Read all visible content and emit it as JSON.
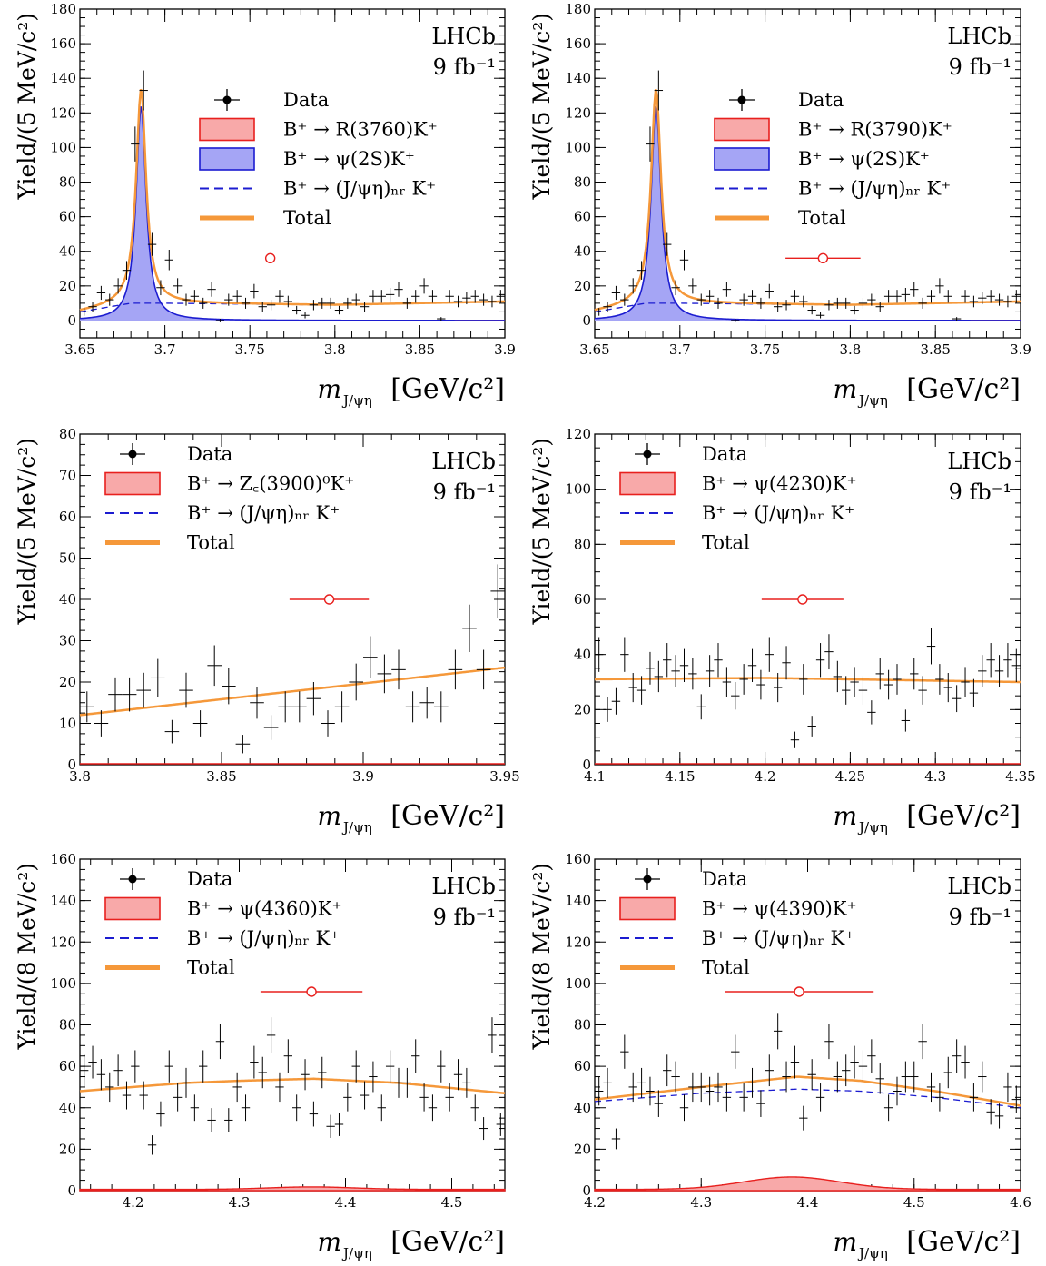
{
  "colors": {
    "data": "#000000",
    "total": "#f5983a",
    "signal_fill": "#f8a9a9",
    "signal_line": "#e8201e",
    "psi2s_fill": "#a5a5f5",
    "psi2s_line": "#1c1cd0",
    "nr_line": "#1c1cd0",
    "marker": "#e8201e"
  },
  "x_axis_label": "m",
  "x_axis_sub": "J/ψη",
  "x_axis_unit": "[GeV/c²]",
  "chart_data": [
    {
      "type": "line",
      "panel": "R(3760)",
      "ylabel": "Yield/(5 MeV/c²)",
      "xlim": [
        3.65,
        3.9
      ],
      "ylim": [
        -10,
        180
      ],
      "xticks": [
        "3.65",
        "3.7",
        "3.75",
        "3.8",
        "3.85",
        "3.9"
      ],
      "yticks": [
        "0",
        "20",
        "40",
        "60",
        "80",
        "100",
        "120",
        "140",
        "160",
        "180"
      ],
      "lhcb": "LHCb",
      "lumi": "9 fb⁻¹",
      "legend": [
        "Data",
        "B⁺ → R(3760)K⁺",
        "B⁺ → ψ(2S)K⁺",
        "B⁺ → (J/ψη)ₙᵣ K⁺",
        "Total"
      ],
      "resonance": {
        "mass": 3.762,
        "y": 36,
        "width": 0.0
      },
      "psi2s": {
        "mass": 3.686,
        "amp": 124,
        "sigma": 0.0035
      },
      "nr": {
        "x": [
          3.65,
          3.68,
          3.7,
          3.75,
          3.8,
          3.85,
          3.9
        ],
        "y": [
          5,
          10,
          10,
          9.5,
          9,
          10,
          11
        ]
      },
      "data_x": [
        3.6525,
        3.6575,
        3.6625,
        3.6675,
        3.6725,
        3.6775,
        3.6825,
        3.6875,
        3.6925,
        3.6975,
        3.7025,
        3.7075,
        3.7125,
        3.7175,
        3.7225,
        3.7275,
        3.7325,
        3.7375,
        3.7425,
        3.7475,
        3.7525,
        3.7575,
        3.7625,
        3.7675,
        3.7725,
        3.7775,
        3.7825,
        3.7875,
        3.7925,
        3.7975,
        3.8025,
        3.8075,
        3.8125,
        3.8175,
        3.8225,
        3.8275,
        3.8325,
        3.8375,
        3.8425,
        3.8475,
        3.8525,
        3.8575,
        3.8625,
        3.8675,
        3.8725,
        3.8775,
        3.8825,
        3.8875,
        3.8925,
        3.8975
      ],
      "data_y": [
        5,
        8,
        16,
        12,
        20,
        29,
        102,
        133,
        44,
        19,
        35,
        20,
        12,
        14,
        10,
        18,
        0,
        12,
        14,
        10,
        17,
        8,
        9,
        14,
        11,
        6,
        3,
        9,
        10,
        10,
        6,
        10,
        12,
        8,
        14,
        14,
        15,
        18,
        10,
        14,
        20,
        14,
        1,
        14,
        11,
        13,
        14,
        12,
        11,
        14
      ]
    },
    {
      "type": "line",
      "panel": "R(3790)",
      "ylabel": "Yield/(5 MeV/c²)",
      "xlim": [
        3.65,
        3.9
      ],
      "ylim": [
        -10,
        180
      ],
      "xticks": [
        "3.65",
        "3.7",
        "3.75",
        "3.8",
        "3.85",
        "3.9"
      ],
      "yticks": [
        "0",
        "20",
        "40",
        "60",
        "80",
        "100",
        "120",
        "140",
        "160",
        "180"
      ],
      "lhcb": "LHCb",
      "lumi": "9 fb⁻¹",
      "legend": [
        "Data",
        "B⁺ → R(3790)K⁺",
        "B⁺ → ψ(2S)K⁺",
        "B⁺ → (J/ψη)ₙᵣ K⁺",
        "Total"
      ],
      "resonance": {
        "mass": 3.784,
        "y": 36,
        "width": 0.022
      },
      "psi2s": {
        "mass": 3.686,
        "amp": 124,
        "sigma": 0.0035
      },
      "nr": {
        "x": [
          3.65,
          3.68,
          3.7,
          3.75,
          3.8,
          3.85,
          3.9
        ],
        "y": [
          5,
          10,
          10,
          9.5,
          9,
          10,
          11
        ]
      },
      "data_x": [
        3.6525,
        3.6575,
        3.6625,
        3.6675,
        3.6725,
        3.6775,
        3.6825,
        3.6875,
        3.6925,
        3.6975,
        3.7025,
        3.7075,
        3.7125,
        3.7175,
        3.7225,
        3.7275,
        3.7325,
        3.7375,
        3.7425,
        3.7475,
        3.7525,
        3.7575,
        3.7625,
        3.7675,
        3.7725,
        3.7775,
        3.7825,
        3.7875,
        3.7925,
        3.7975,
        3.8025,
        3.8075,
        3.8125,
        3.8175,
        3.8225,
        3.8275,
        3.8325,
        3.8375,
        3.8425,
        3.8475,
        3.8525,
        3.8575,
        3.8625,
        3.8675,
        3.8725,
        3.8775,
        3.8825,
        3.8875,
        3.8925,
        3.8975
      ],
      "data_y": [
        5,
        8,
        16,
        12,
        20,
        29,
        102,
        133,
        44,
        19,
        35,
        20,
        12,
        14,
        10,
        18,
        0,
        12,
        14,
        10,
        17,
        8,
        9,
        14,
        11,
        6,
        3,
        9,
        10,
        10,
        6,
        10,
        12,
        8,
        14,
        14,
        15,
        18,
        10,
        14,
        20,
        14,
        1,
        14,
        11,
        13,
        14,
        12,
        11,
        14
      ]
    },
    {
      "type": "line",
      "panel": "Zc(3900)",
      "ylabel": "Yield/(5 MeV/c²)",
      "xlim": [
        3.8,
        3.95
      ],
      "ylim": [
        0,
        80
      ],
      "xticks": [
        "3.8",
        "3.85",
        "3.9",
        "3.95"
      ],
      "yticks": [
        "0",
        "10",
        "20",
        "30",
        "40",
        "50",
        "60",
        "70",
        "80"
      ],
      "lhcb": "LHCb",
      "lumi": "9 fb⁻¹",
      "legend": [
        "Data",
        "B⁺ → Z꜀(3900)⁰K⁺",
        "B⁺ → (J/ψη)ₙᵣ K⁺",
        "Total"
      ],
      "resonance": {
        "mass": 3.888,
        "y": 40,
        "width": 0.014
      },
      "total": {
        "x": [
          3.8,
          3.95
        ],
        "y": [
          12,
          23.5
        ]
      },
      "data_x": [
        3.8025,
        3.8075,
        3.8125,
        3.8175,
        3.8225,
        3.8275,
        3.8325,
        3.8375,
        3.8425,
        3.8475,
        3.8525,
        3.8575,
        3.8625,
        3.8675,
        3.8725,
        3.8775,
        3.8825,
        3.8875,
        3.8925,
        3.8975,
        3.9025,
        3.9075,
        3.9125,
        3.9175,
        3.9225,
        3.9275,
        3.9325,
        3.9375,
        3.9425,
        3.9475
      ],
      "data_y": [
        14,
        10,
        17,
        17,
        18,
        21,
        8,
        18,
        10,
        24,
        19,
        5,
        15,
        9,
        14,
        14,
        16,
        10,
        14,
        20,
        26,
        22,
        23,
        14,
        15,
        14,
        23,
        33,
        23,
        42
      ]
    },
    {
      "type": "line",
      "panel": "ψ(4230)",
      "ylabel": "Yield/(5 MeV/c²)",
      "xlim": [
        4.1,
        4.35
      ],
      "ylim": [
        0,
        120
      ],
      "xticks": [
        "4.1",
        "4.15",
        "4.2",
        "4.25",
        "4.3",
        "4.35"
      ],
      "yticks": [
        "0",
        "20",
        "40",
        "60",
        "80",
        "100",
        "120"
      ],
      "lhcb": "LHCb",
      "lumi": "9 fb⁻¹",
      "legend": [
        "Data",
        "B⁺ → ψ(4230)K⁺",
        "B⁺ → (J/ψη)ₙᵣ K⁺",
        "Total"
      ],
      "resonance": {
        "mass": 4.222,
        "y": 60,
        "width": 0.024
      },
      "total": {
        "x": [
          4.1,
          4.2,
          4.35
        ],
        "y": [
          31,
          31.5,
          30
        ]
      },
      "data_x": [
        4.1025,
        4.1075,
        4.1125,
        4.1175,
        4.1225,
        4.1275,
        4.1325,
        4.1375,
        4.1425,
        4.1475,
        4.1525,
        4.1575,
        4.1625,
        4.1675,
        4.1725,
        4.1775,
        4.1825,
        4.1875,
        4.1925,
        4.1975,
        4.2025,
        4.2075,
        4.2125,
        4.2175,
        4.2225,
        4.2275,
        4.2325,
        4.2375,
        4.2425,
        4.2475,
        4.2525,
        4.2575,
        4.2625,
        4.2675,
        4.2725,
        4.2775,
        4.2825,
        4.2875,
        4.2925,
        4.2975,
        4.3025,
        4.3075,
        4.3125,
        4.3175,
        4.3225,
        4.3275,
        4.3325,
        4.3375,
        4.3425,
        4.3475
      ],
      "data_y": [
        40,
        20,
        23,
        40,
        28,
        27,
        35,
        32,
        38,
        34,
        36,
        33,
        21,
        34,
        38,
        30,
        25,
        31,
        36,
        29,
        40,
        28,
        37,
        9,
        31,
        14,
        38,
        41,
        32,
        27,
        30,
        27,
        19,
        33,
        29,
        31,
        16,
        33,
        27,
        43,
        31,
        28,
        24,
        30,
        26,
        34,
        38,
        34,
        38,
        36
      ]
    },
    {
      "type": "line",
      "panel": "ψ(4360)",
      "ylabel": "Yield/(8 MeV/c²)",
      "xlim": [
        4.15,
        4.55
      ],
      "ylim": [
        0,
        160
      ],
      "xticks": [
        "4.2",
        "4.3",
        "4.4",
        "4.5"
      ],
      "yticks": [
        "0",
        "20",
        "40",
        "60",
        "80",
        "100",
        "120",
        "140",
        "160"
      ],
      "lhcb": "LHCb",
      "lumi": "9 fb⁻¹",
      "legend": [
        "Data",
        "B⁺ → ψ(4360)K⁺",
        "B⁺ → (J/ψη)ₙᵣ K⁺",
        "Total"
      ],
      "resonance": {
        "mass": 4.368,
        "y": 96,
        "width": 0.048
      },
      "total": {
        "x": [
          4.15,
          4.25,
          4.3,
          4.37,
          4.45,
          4.55
        ],
        "y": [
          48,
          52,
          53,
          54,
          52,
          47
        ]
      },
      "signal": {
        "mass": 4.368,
        "amp": 1.2,
        "sigma": 0.04
      },
      "data_x": [
        4.154,
        4.162,
        4.17,
        4.178,
        4.186,
        4.194,
        4.202,
        4.21,
        4.218,
        4.226,
        4.234,
        4.242,
        4.25,
        4.258,
        4.266,
        4.274,
        4.282,
        4.29,
        4.298,
        4.306,
        4.314,
        4.322,
        4.33,
        4.338,
        4.346,
        4.354,
        4.362,
        4.37,
        4.378,
        4.386,
        4.394,
        4.402,
        4.41,
        4.418,
        4.426,
        4.434,
        4.442,
        4.45,
        4.458,
        4.466,
        4.474,
        4.482,
        4.49,
        4.498,
        4.506,
        4.514,
        4.522,
        4.53,
        4.538,
        4.546
      ],
      "data_y": [
        58,
        62,
        56,
        50,
        58,
        46,
        60,
        46,
        22,
        37,
        60,
        45,
        52,
        40,
        60,
        34,
        72,
        34,
        50,
        40,
        62,
        57,
        75,
        50,
        65,
        40,
        56,
        37,
        57,
        31,
        32,
        45,
        60,
        46,
        55,
        40,
        60,
        52,
        52,
        65,
        45,
        40,
        60,
        45,
        56,
        52,
        40,
        30,
        75,
        32
      ]
    },
    {
      "type": "line",
      "panel": "ψ(4390)",
      "ylabel": "Yield/(8 MeV/c²)",
      "xlim": [
        4.2,
        4.6
      ],
      "ylim": [
        0,
        160
      ],
      "xticks": [
        "4.2",
        "4.3",
        "4.4",
        "4.5",
        "4.6"
      ],
      "yticks": [
        "0",
        "20",
        "40",
        "60",
        "80",
        "100",
        "120",
        "140",
        "160"
      ],
      "lhcb": "LHCb",
      "lumi": "9 fb⁻¹",
      "legend": [
        "Data",
        "B⁺ → ψ(4390)K⁺",
        "B⁺ → (J/ψη)ₙᵣ K⁺",
        "Total"
      ],
      "resonance": {
        "mass": 4.392,
        "y": 96,
        "width": 0.07
      },
      "total": {
        "x": [
          4.2,
          4.3,
          4.39,
          4.45,
          4.52,
          4.6
        ],
        "y": [
          44,
          50,
          55,
          53,
          48,
          41
        ]
      },
      "nr": {
        "x": [
          4.2,
          4.3,
          4.39,
          4.45,
          4.52,
          4.6
        ],
        "y": [
          43,
          47,
          49,
          48,
          45,
          40
        ]
      },
      "signal": {
        "mass": 4.385,
        "amp": 6,
        "sigma": 0.045
      },
      "data_x": [
        4.204,
        4.212,
        4.22,
        4.228,
        4.236,
        4.244,
        4.252,
        4.26,
        4.268,
        4.276,
        4.284,
        4.292,
        4.3,
        4.308,
        4.316,
        4.324,
        4.332,
        4.34,
        4.348,
        4.356,
        4.364,
        4.372,
        4.38,
        4.388,
        4.396,
        4.404,
        4.412,
        4.42,
        4.428,
        4.436,
        4.444,
        4.452,
        4.46,
        4.468,
        4.476,
        4.484,
        4.492,
        4.5,
        4.508,
        4.516,
        4.524,
        4.532,
        4.54,
        4.548,
        4.556,
        4.564,
        4.572,
        4.58,
        4.588,
        4.596
      ],
      "data_y": [
        48,
        52,
        25,
        67,
        50,
        52,
        48,
        42,
        58,
        55,
        40,
        50,
        50,
        48,
        50,
        45,
        67,
        45,
        52,
        42,
        58,
        77,
        55,
        62,
        35,
        56,
        45,
        72,
        55,
        58,
        62,
        60,
        65,
        54,
        40,
        48,
        55,
        55,
        72,
        50,
        45,
        57,
        65,
        62,
        45,
        55,
        38,
        36,
        50,
        44
      ]
    }
  ]
}
